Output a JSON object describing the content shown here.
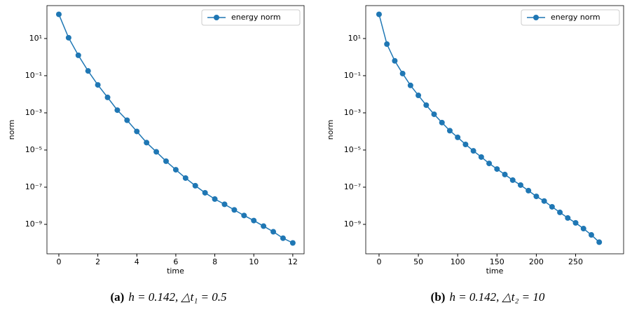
{
  "chart_data": [
    {
      "type": "line",
      "caption_label": "(a)",
      "caption": "h = 0.142,  △t₁ = 0.5",
      "x_label": "time",
      "y_label": "norm",
      "log_y": true,
      "legend": "upper right",
      "xlim": [
        -0.61,
        12.58
      ],
      "ylim": [
        2.6e-11,
        590
      ],
      "xticks": [
        0,
        2,
        4,
        6,
        8,
        10,
        12
      ],
      "yticks": [
        {
          "value": 10,
          "label": "10¹"
        },
        {
          "value": 0.1,
          "label": "10⁻¹"
        },
        {
          "value": 0.001,
          "label": "10⁻³"
        },
        {
          "value": 1e-05,
          "label": "10⁻⁵"
        },
        {
          "value": 1e-07,
          "label": "10⁻⁷"
        },
        {
          "value": 1e-09,
          "label": "10⁻⁹"
        }
      ],
      "x": [
        0,
        0.5,
        1,
        1.5,
        2,
        2.5,
        3,
        3.5,
        4,
        4.5,
        5,
        5.5,
        6,
        6.5,
        7,
        7.5,
        8,
        8.5,
        9,
        9.5,
        10,
        10.5,
        11,
        11.5,
        12
      ],
      "series": [
        {
          "name": "energy norm",
          "color": "#1f77b4",
          "values": [
            200,
            11,
            1.25,
            0.18,
            0.032,
            0.0068,
            0.0014,
            0.0004,
            0.0001,
            2.5e-05,
            8e-06,
            2.5e-06,
            8.7e-07,
            3.1e-07,
            1.2e-07,
            5e-08,
            2.3e-08,
            1.2e-08,
            6e-09,
            3e-09,
            1.6e-09,
            8e-10,
            4e-10,
            1.8e-10,
            1e-10
          ]
        }
      ]
    },
    {
      "type": "line",
      "caption_label": "(b)",
      "caption": "h = 0.142,  △t₂ = 10",
      "x_label": "time",
      "y_label": "norm",
      "log_y": true,
      "legend": "upper right",
      "xlim": [
        -16.9,
        311
      ],
      "ylim": [
        2.6e-11,
        590
      ],
      "xticks": [
        0,
        50,
        100,
        150,
        200,
        250
      ],
      "yticks": [
        {
          "value": 10,
          "label": "10¹"
        },
        {
          "value": 0.1,
          "label": "10⁻¹"
        },
        {
          "value": 0.001,
          "label": "10⁻³"
        },
        {
          "value": 1e-05,
          "label": "10⁻⁵"
        },
        {
          "value": 1e-07,
          "label": "10⁻⁷"
        },
        {
          "value": 1e-09,
          "label": "10⁻⁹"
        }
      ],
      "x": [
        0,
        10,
        20,
        30,
        40,
        50,
        60,
        70,
        80,
        90,
        100,
        110,
        120,
        130,
        140,
        150,
        160,
        170,
        180,
        190,
        200,
        210,
        220,
        230,
        240,
        250,
        260,
        270,
        280
      ],
      "series": [
        {
          "name": "energy norm",
          "color": "#1f77b4",
          "values": [
            200,
            5,
            0.63,
            0.13,
            0.03,
            0.0087,
            0.0026,
            0.00084,
            0.0003,
            0.00011,
            4.8e-05,
            2e-05,
            9e-06,
            4.2e-06,
            1.9e-06,
            9.5e-07,
            4.8e-07,
            2.4e-07,
            1.3e-07,
            6.5e-08,
            3.2e-08,
            1.8e-08,
            8.8e-09,
            4.4e-09,
            2.2e-09,
            1.2e-09,
            5.9e-10,
            2.7e-10,
            1.1e-10
          ]
        }
      ]
    }
  ]
}
